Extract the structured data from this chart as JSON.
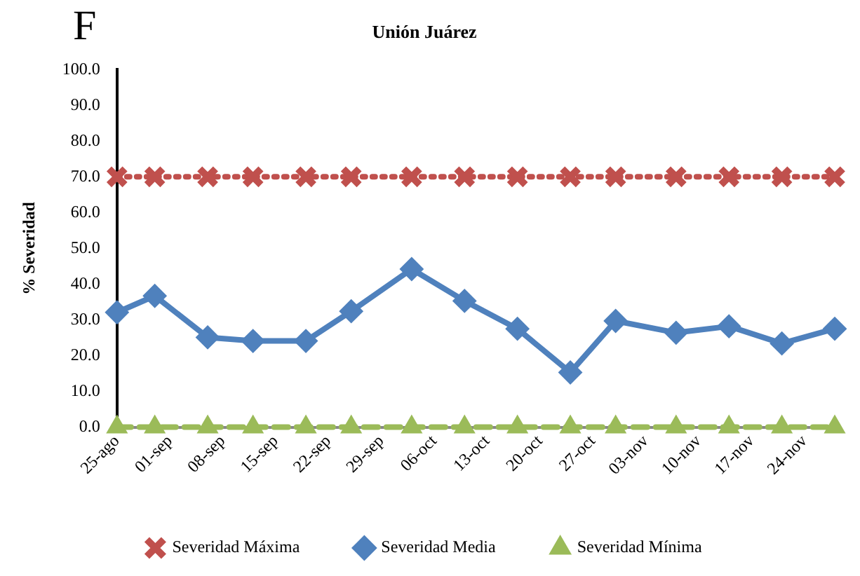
{
  "chart_data": {
    "type": "line",
    "title": "Unión Juárez",
    "ylabel": "% Severidad",
    "annotations": [
      "F"
    ],
    "x": [
      "--08-25",
      "--08-30",
      "--09-06",
      "--09-12",
      "--09-19",
      "--09-25",
      "--10-03",
      "--10-10",
      "--10-17",
      "--10-24",
      "--10-30",
      "--11-07",
      "--11-14",
      "--11-21",
      "--11-28"
    ],
    "xlim": [
      "--08-25",
      "--11-28"
    ],
    "xticks": [
      {
        "value": "--08-25",
        "label": "25-ago"
      },
      {
        "value": "--09-01",
        "label": "01-sep"
      },
      {
        "value": "--09-08",
        "label": "08-sep"
      },
      {
        "value": "--09-15",
        "label": "15-sep"
      },
      {
        "value": "--09-22",
        "label": "22-sep"
      },
      {
        "value": "--09-29",
        "label": "29-sep"
      },
      {
        "value": "--10-06",
        "label": "06-oct"
      },
      {
        "value": "--10-13",
        "label": "13-oct"
      },
      {
        "value": "--10-20",
        "label": "20-oct"
      },
      {
        "value": "--10-27",
        "label": "27-oct"
      },
      {
        "value": "--11-03",
        "label": "03-nov"
      },
      {
        "value": "--11-10",
        "label": "10-nov"
      },
      {
        "value": "--11-17",
        "label": "17-nov"
      },
      {
        "value": "--11-24",
        "label": "24-nov"
      }
    ],
    "ylim": [
      0,
      100
    ],
    "yticks": [
      {
        "value": 0,
        "label": "0.0"
      },
      {
        "value": 10,
        "label": "10.0"
      },
      {
        "value": 20,
        "label": "20.0"
      },
      {
        "value": 30,
        "label": "30.0"
      },
      {
        "value": 40,
        "label": "40.0"
      },
      {
        "value": 50,
        "label": "50.0"
      },
      {
        "value": 60,
        "label": "60.0"
      },
      {
        "value": 70,
        "label": "70.0"
      },
      {
        "value": 80,
        "label": "80.0"
      },
      {
        "value": 90,
        "label": "90.0"
      },
      {
        "value": 100,
        "label": "100.0"
      }
    ],
    "legend": "bottom",
    "series": [
      {
        "name": "Severidad Máxima",
        "color": "#c0504d",
        "marker": "cross",
        "line_style": "dotted",
        "values": [
          70,
          70,
          70,
          70,
          70,
          70,
          70,
          70,
          70,
          70,
          70,
          70,
          70,
          70,
          70
        ]
      },
      {
        "name": "Severidad Media",
        "color": "#4f81bd",
        "marker": "diamond",
        "line_style": "solid",
        "values": [
          32.1,
          36.7,
          25.1,
          24.1,
          24.1,
          32.4,
          44.2,
          35.3,
          27.5,
          15.3,
          29.7,
          26.4,
          28.2,
          23.4,
          27.5
        ]
      },
      {
        "name": "Severidad Mínima",
        "color": "#9bbb59",
        "marker": "triangle",
        "line_style": "dashed",
        "values": [
          0,
          0,
          0,
          0,
          0,
          0,
          0,
          0,
          0,
          0,
          0,
          0,
          0,
          0,
          0
        ]
      }
    ]
  }
}
